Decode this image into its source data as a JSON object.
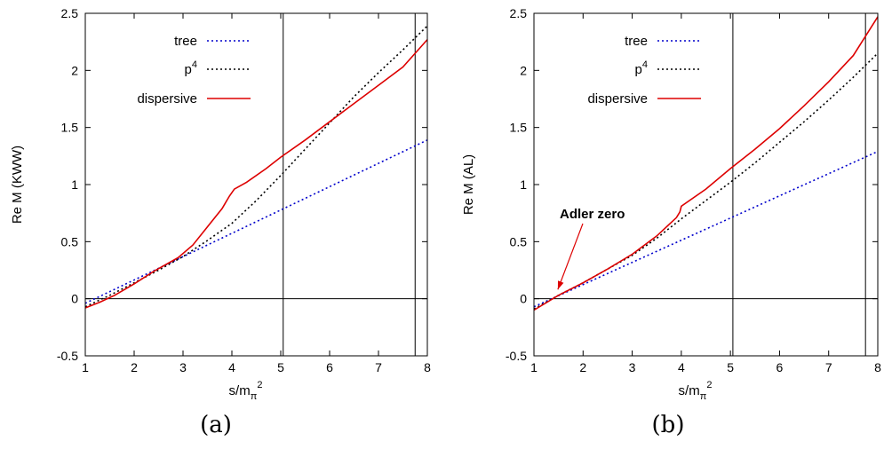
{
  "chart_data": [
    {
      "type": "line",
      "panel_caption": "(a)",
      "xlabel": "s/m",
      "xlabel_sub": "π",
      "xlabel_sup": "2",
      "ylabel": "Re M (KWW)",
      "xlim": [
        1,
        8
      ],
      "ylim": [
        -0.5,
        2.5
      ],
      "xticks": [
        "1",
        "2",
        "3",
        "4",
        "5",
        "6",
        "7",
        "8"
      ],
      "yticks": [
        "-0.5",
        "0",
        "0.5",
        "1",
        "1.5",
        "2",
        "2.5"
      ],
      "vlines": [
        5.05,
        7.75
      ],
      "hline": 0,
      "annotation": null,
      "series": [
        {
          "name": "tree",
          "style": "dotted",
          "color": "#0000cc",
          "x": [
            1.0,
            8.0
          ],
          "y": [
            -0.04,
            1.39
          ]
        },
        {
          "name": "p",
          "name_sup": "4",
          "style": "dotted",
          "color": "#000000",
          "x": [
            1.0,
            1.5,
            2.0,
            2.5,
            3.0,
            3.5,
            4.0,
            4.5,
            5.0,
            5.5,
            6.0,
            6.5,
            7.0,
            7.5,
            8.0
          ],
          "y": [
            -0.07,
            0.03,
            0.14,
            0.25,
            0.37,
            0.51,
            0.66,
            0.86,
            1.08,
            1.31,
            1.54,
            1.77,
            1.98,
            2.18,
            2.39
          ]
        },
        {
          "name": "dispersive",
          "style": "solid",
          "color": "#dd0000",
          "x": [
            1.0,
            1.3,
            1.6,
            2.0,
            2.4,
            2.9,
            3.2,
            3.5,
            3.8,
            3.95,
            4.05,
            4.3,
            4.7,
            5.0,
            5.5,
            6.0,
            6.5,
            7.0,
            7.5,
            8.0
          ],
          "y": [
            -0.08,
            -0.03,
            0.03,
            0.13,
            0.24,
            0.36,
            0.47,
            0.63,
            0.79,
            0.9,
            0.96,
            1.02,
            1.14,
            1.24,
            1.39,
            1.55,
            1.71,
            1.87,
            2.03,
            2.27
          ]
        }
      ]
    },
    {
      "type": "line",
      "panel_caption": "(b)",
      "xlabel": "s/m",
      "xlabel_sub": "π",
      "xlabel_sup": "2",
      "ylabel": "Re M (AL)",
      "xlim": [
        1,
        8
      ],
      "ylim": [
        -0.5,
        2.5
      ],
      "xticks": [
        "1",
        "2",
        "3",
        "4",
        "5",
        "6",
        "7",
        "8"
      ],
      "yticks": [
        "-0.5",
        "0",
        "0.5",
        "1",
        "1.5",
        "2",
        "2.5"
      ],
      "vlines": [
        5.05,
        7.75
      ],
      "hline": 0,
      "annotation": {
        "text": "Adler zero",
        "x": 1.45,
        "y": 0.05
      },
      "series": [
        {
          "name": "tree",
          "style": "dotted",
          "color": "#0000cc",
          "x": [
            1.0,
            8.0
          ],
          "y": [
            -0.07,
            1.29
          ]
        },
        {
          "name": "p",
          "name_sup": "4",
          "style": "dotted",
          "color": "#000000",
          "x": [
            1.0,
            1.5,
            2.0,
            2.5,
            3.0,
            3.5,
            4.0,
            4.5,
            5.0,
            5.5,
            6.0,
            6.5,
            7.0,
            7.5,
            8.0
          ],
          "y": [
            -0.09,
            0.03,
            0.14,
            0.26,
            0.38,
            0.53,
            0.7,
            0.86,
            1.02,
            1.19,
            1.37,
            1.55,
            1.74,
            1.94,
            2.15
          ]
        },
        {
          "name": "dispersive",
          "style": "solid",
          "color": "#dd0000",
          "x": [
            1.0,
            1.5,
            2.0,
            2.5,
            3.0,
            3.5,
            3.9,
            3.97,
            4.0,
            4.5,
            5.0,
            5.5,
            6.0,
            6.5,
            7.0,
            7.5,
            8.0
          ],
          "y": [
            -0.1,
            0.03,
            0.14,
            0.26,
            0.39,
            0.55,
            0.71,
            0.76,
            0.81,
            0.96,
            1.14,
            1.31,
            1.49,
            1.69,
            1.9,
            2.13,
            2.47
          ]
        }
      ]
    }
  ]
}
